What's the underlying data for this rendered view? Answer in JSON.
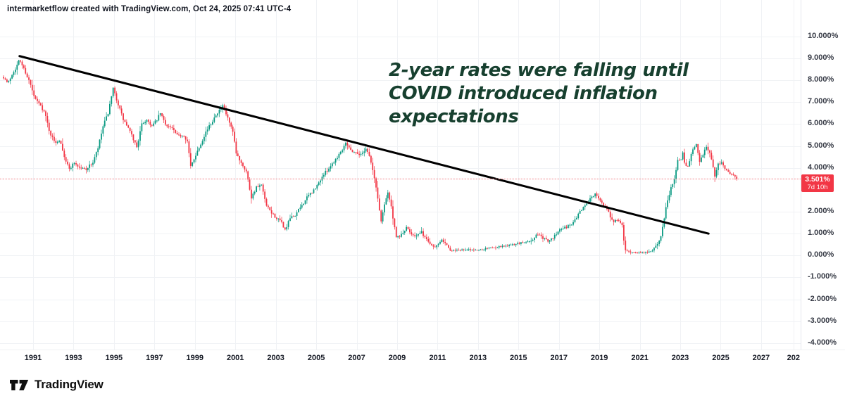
{
  "header": {
    "attribution": "intermarketflow created with TradingView.com, Oct 24, 2025 07:41 UTC-4"
  },
  "annotation": {
    "text": "2-year rates were falling until\nCOVID introduced inflation\nexpectations",
    "color": "#17402f"
  },
  "price_label": {
    "value": "3.501%",
    "countdown": "7d 10h",
    "bg": "#f23645"
  },
  "footer": {
    "brand": "TradingView"
  },
  "axis": {
    "y_ticks": [
      {
        "value": 10,
        "label": "10.000%"
      },
      {
        "value": 9,
        "label": "9.000%"
      },
      {
        "value": 8,
        "label": "8.000%"
      },
      {
        "value": 7,
        "label": "7.000%"
      },
      {
        "value": 6,
        "label": "6.000%"
      },
      {
        "value": 5,
        "label": "5.000%"
      },
      {
        "value": 4,
        "label": "4.000%"
      },
      {
        "value": 2,
        "label": "2.000%"
      },
      {
        "value": 1,
        "label": "1.000%"
      },
      {
        "value": 0,
        "label": "0.000%"
      },
      {
        "value": -1,
        "label": "-1.000%"
      },
      {
        "value": -2,
        "label": "-2.000%"
      },
      {
        "value": -3,
        "label": "-3.000%"
      },
      {
        "value": -4,
        "label": "-4.000%"
      }
    ],
    "x_ticks": [
      {
        "year": 1991,
        "label": "1991"
      },
      {
        "year": 1993,
        "label": "1993"
      },
      {
        "year": 1995,
        "label": "1995"
      },
      {
        "year": 1997,
        "label": "1997"
      },
      {
        "year": 1999,
        "label": "1999"
      },
      {
        "year": 2001,
        "label": "2001"
      },
      {
        "year": 2003,
        "label": "2003"
      },
      {
        "year": 2005,
        "label": "2005"
      },
      {
        "year": 2007,
        "label": "2007"
      },
      {
        "year": 2009,
        "label": "2009"
      },
      {
        "year": 2011,
        "label": "2011"
      },
      {
        "year": 2013,
        "label": "2013"
      },
      {
        "year": 2015,
        "label": "2015"
      },
      {
        "year": 2017,
        "label": "2017"
      },
      {
        "year": 2019,
        "label": "2019"
      },
      {
        "year": 2021,
        "label": "2021"
      },
      {
        "year": 2023,
        "label": "2023"
      },
      {
        "year": 2025,
        "label": "2025"
      },
      {
        "year": 2027,
        "label": "2027"
      },
      {
        "year": 2028.6,
        "label": "202"
      }
    ]
  },
  "chart_data": {
    "type": "candlestick",
    "timeframe_months": 1,
    "subject": "2-year interest rate (%)",
    "x_range_years": [
      1989.5,
      2029.3
    ],
    "y_range_pct": [
      -4,
      10
    ],
    "current_value_pct": 3.501,
    "colors": {
      "up": "#089981",
      "down": "#f23645",
      "trendline": "#000000",
      "price_line": "#f0868d",
      "grid": "#f0f2f5"
    },
    "trendline": {
      "x1": 1990.33,
      "y1": 9.1,
      "x2": 2024.4,
      "y2": 1.0
    },
    "series_anchors_pct": [
      [
        1989.54,
        8.15
      ],
      [
        1989.75,
        7.85
      ],
      [
        1990.0,
        8.35
      ],
      [
        1990.17,
        8.6
      ],
      [
        1990.33,
        8.95
      ],
      [
        1990.58,
        8.45
      ],
      [
        1990.83,
        7.9
      ],
      [
        1991.08,
        7.15
      ],
      [
        1991.33,
        6.9
      ],
      [
        1991.58,
        6.5
      ],
      [
        1991.83,
        5.6
      ],
      [
        1992.08,
        5.15
      ],
      [
        1992.33,
        5.3
      ],
      [
        1992.58,
        4.4
      ],
      [
        1992.79,
        3.95
      ],
      [
        1993.04,
        4.25
      ],
      [
        1993.29,
        4.0
      ],
      [
        1993.63,
        3.95
      ],
      [
        1993.96,
        4.25
      ],
      [
        1994.21,
        4.9
      ],
      [
        1994.46,
        5.9
      ],
      [
        1994.71,
        6.5
      ],
      [
        1994.96,
        7.6
      ],
      [
        1995.17,
        7.0
      ],
      [
        1995.46,
        6.2
      ],
      [
        1995.71,
        5.8
      ],
      [
        1995.96,
        5.3
      ],
      [
        1996.13,
        4.95
      ],
      [
        1996.38,
        6.0
      ],
      [
        1996.63,
        6.2
      ],
      [
        1996.88,
        5.9
      ],
      [
        1997.13,
        6.2
      ],
      [
        1997.29,
        6.5
      ],
      [
        1997.54,
        6.0
      ],
      [
        1997.88,
        5.8
      ],
      [
        1998.13,
        5.45
      ],
      [
        1998.46,
        5.5
      ],
      [
        1998.63,
        5.2
      ],
      [
        1998.79,
        4.05
      ],
      [
        1999.04,
        4.6
      ],
      [
        1999.29,
        5.1
      ],
      [
        1999.54,
        5.65
      ],
      [
        1999.79,
        6.0
      ],
      [
        2000.04,
        6.45
      ],
      [
        2000.38,
        6.8
      ],
      [
        2000.63,
        6.25
      ],
      [
        2000.88,
        5.6
      ],
      [
        2001.04,
        4.65
      ],
      [
        2001.29,
        4.25
      ],
      [
        2001.54,
        3.85
      ],
      [
        2001.79,
        2.65
      ],
      [
        2002.04,
        3.1
      ],
      [
        2002.29,
        3.2
      ],
      [
        2002.54,
        2.25
      ],
      [
        2002.79,
        1.95
      ],
      [
        2003.04,
        1.7
      ],
      [
        2003.29,
        1.5
      ],
      [
        2003.46,
        1.15
      ],
      [
        2003.71,
        1.7
      ],
      [
        2003.96,
        1.85
      ],
      [
        2004.29,
        2.3
      ],
      [
        2004.63,
        2.75
      ],
      [
        2004.96,
        3.05
      ],
      [
        2005.29,
        3.6
      ],
      [
        2005.63,
        4.0
      ],
      [
        2005.96,
        4.4
      ],
      [
        2006.29,
        4.85
      ],
      [
        2006.46,
        5.2
      ],
      [
        2006.71,
        4.8
      ],
      [
        2006.96,
        4.7
      ],
      [
        2007.21,
        4.6
      ],
      [
        2007.46,
        4.9
      ],
      [
        2007.63,
        4.55
      ],
      [
        2007.79,
        3.9
      ],
      [
        2007.96,
        3.1
      ],
      [
        2008.21,
        1.55
      ],
      [
        2008.38,
        2.4
      ],
      [
        2008.54,
        2.9
      ],
      [
        2008.71,
        2.2
      ],
      [
        2008.88,
        1.2
      ],
      [
        2008.96,
        0.8
      ],
      [
        2009.21,
        0.95
      ],
      [
        2009.46,
        1.25
      ],
      [
        2009.71,
        1.0
      ],
      [
        2009.96,
        0.9
      ],
      [
        2010.21,
        1.05
      ],
      [
        2010.46,
        0.72
      ],
      [
        2010.71,
        0.48
      ],
      [
        2010.88,
        0.38
      ],
      [
        2011.08,
        0.62
      ],
      [
        2011.21,
        0.75
      ],
      [
        2011.46,
        0.5
      ],
      [
        2011.63,
        0.2
      ],
      [
        2011.96,
        0.26
      ],
      [
        2012.5,
        0.26
      ],
      [
        2013.0,
        0.25
      ],
      [
        2013.5,
        0.34
      ],
      [
        2014.0,
        0.4
      ],
      [
        2014.5,
        0.46
      ],
      [
        2015.0,
        0.55
      ],
      [
        2015.38,
        0.62
      ],
      [
        2015.71,
        0.72
      ],
      [
        2015.96,
        1.0
      ],
      [
        2016.21,
        0.78
      ],
      [
        2016.46,
        0.68
      ],
      [
        2016.71,
        0.78
      ],
      [
        2016.96,
        1.15
      ],
      [
        2017.29,
        1.3
      ],
      [
        2017.63,
        1.4
      ],
      [
        2017.96,
        1.9
      ],
      [
        2018.29,
        2.3
      ],
      [
        2018.54,
        2.6
      ],
      [
        2018.83,
        2.85
      ],
      [
        2019.04,
        2.5
      ],
      [
        2019.29,
        2.25
      ],
      [
        2019.54,
        1.8
      ],
      [
        2019.71,
        1.55
      ],
      [
        2019.96,
        1.6
      ],
      [
        2020.13,
        1.35
      ],
      [
        2020.25,
        0.3
      ],
      [
        2020.42,
        0.17
      ],
      [
        2020.79,
        0.14
      ],
      [
        2021.04,
        0.12
      ],
      [
        2021.38,
        0.15
      ],
      [
        2021.63,
        0.22
      ],
      [
        2021.88,
        0.55
      ],
      [
        2022.04,
        0.85
      ],
      [
        2022.21,
        1.75
      ],
      [
        2022.38,
        2.6
      ],
      [
        2022.54,
        3.05
      ],
      [
        2022.71,
        3.55
      ],
      [
        2022.88,
        4.4
      ],
      [
        2023.04,
        4.35
      ],
      [
        2023.13,
        4.75
      ],
      [
        2023.25,
        4.05
      ],
      [
        2023.42,
        4.15
      ],
      [
        2023.63,
        4.9
      ],
      [
        2023.79,
        5.1
      ],
      [
        2023.96,
        4.3
      ],
      [
        2024.13,
        4.6
      ],
      [
        2024.29,
        5.0
      ],
      [
        2024.46,
        4.7
      ],
      [
        2024.63,
        3.95
      ],
      [
        2024.71,
        3.65
      ],
      [
        2024.88,
        4.15
      ],
      [
        2025.04,
        4.25
      ],
      [
        2025.29,
        3.9
      ],
      [
        2025.46,
        3.7
      ],
      [
        2025.63,
        3.62
      ],
      [
        2025.79,
        3.501
      ]
    ],
    "gen": {
      "start": 1989.542,
      "end": 2025.792,
      "per_year": 12,
      "seed": 7,
      "jitter": 0.13,
      "wick": 0.35
    }
  }
}
